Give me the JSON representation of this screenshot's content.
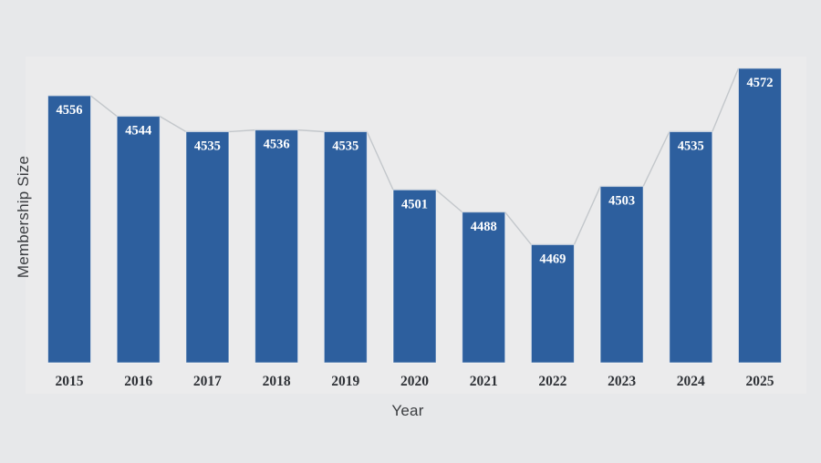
{
  "chart_data": {
    "type": "bar",
    "title": "",
    "categories": [
      "2015",
      "2016",
      "2017",
      "2018",
      "2019",
      "2020",
      "2021",
      "2022",
      "2023",
      "2024",
      "2025"
    ],
    "values": [
      4556,
      4544,
      4535,
      4536,
      4535,
      4501,
      4488,
      4469,
      4503,
      4535,
      4572
    ],
    "xlabel": "Year",
    "ylabel": "Membership Size",
    "ylim": [
      4400,
      4580
    ],
    "grid": false,
    "legend": "none",
    "bar_value_labels_shown": true,
    "trend_line_between_bar_tops": true,
    "colors": {
      "background": "#e7e8ea",
      "plot_panel": "#ebebec",
      "bar_fill": "#2d5f9e",
      "bar_edge": "rgba(255,255,255,0.55)",
      "trend_line": "#c3c7cb",
      "bar_value_label": "#ffffff",
      "x_tick_label": "#2e3136",
      "axis_title": "#3b3d40"
    }
  }
}
